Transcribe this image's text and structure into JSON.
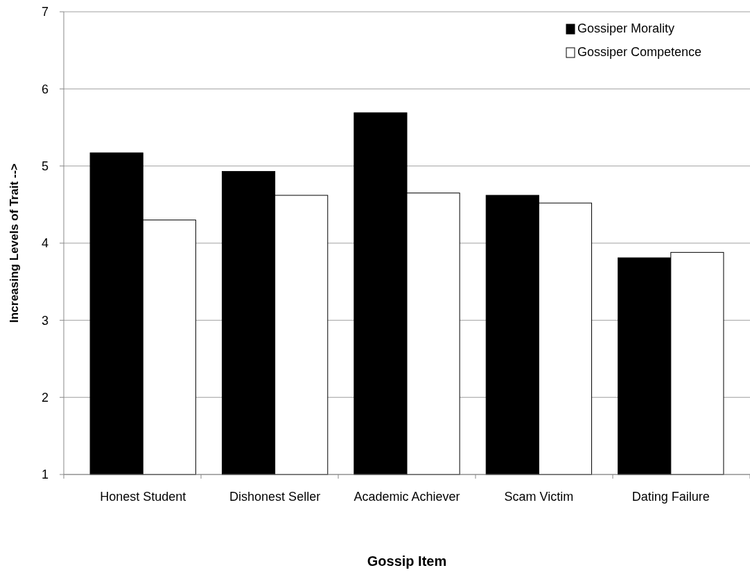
{
  "chart_data": {
    "type": "bar",
    "xlabel": "Gossip Item",
    "ylabel": "Increasing Levels of Trait -->",
    "categories": [
      "Honest Student",
      "Dishonest Seller",
      "Academic Achiever",
      "Scam Victim",
      "Dating Failure"
    ],
    "series": [
      {
        "name": "Gossiper Morality",
        "color": "#000000",
        "values": [
          5.17,
          4.93,
          5.69,
          4.62,
          3.81
        ]
      },
      {
        "name": "Gossiper Competence",
        "color": "#ffffff",
        "values": [
          4.3,
          4.62,
          4.65,
          4.52,
          3.88
        ]
      }
    ],
    "ylim": [
      1,
      7
    ],
    "yticks": [
      1,
      2,
      3,
      4,
      5,
      6,
      7
    ],
    "grid": "y",
    "legend": "top right"
  }
}
